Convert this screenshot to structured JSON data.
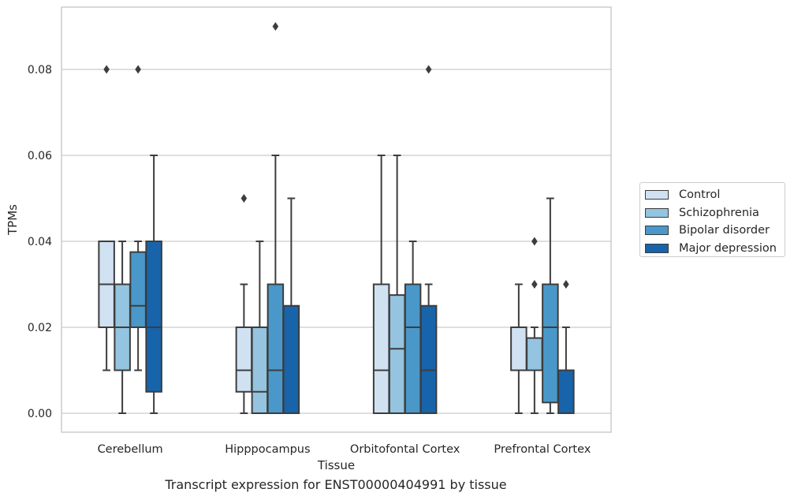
{
  "chart_data": {
    "type": "box",
    "title": "",
    "xlabel": "Tissue",
    "ylabel": "TPMs",
    "ylim": [
      -0.0045,
      0.0945
    ],
    "yticks": [
      "0.00",
      "0.02",
      "0.04",
      "0.06",
      "0.08"
    ],
    "grid": "horizontal",
    "legend_position": "right",
    "categories": [
      "Cerebellum",
      "Hipppocampus",
      "Orbitofontal Cortex",
      "Prefrontal Cortex"
    ],
    "series": [
      {
        "name": "Control",
        "color": "#d0e1f2",
        "boxes": [
          {
            "q1": 0.02,
            "median": 0.03,
            "q3": 0.04,
            "whisker_low": 0.01,
            "whisker_high": 0.04,
            "outliers": [
              0.08
            ]
          },
          {
            "q1": 0.005,
            "median": 0.01,
            "q3": 0.02,
            "whisker_low": 0.0,
            "whisker_high": 0.03,
            "outliers": [
              0.05
            ]
          },
          {
            "q1": 0.0,
            "median": 0.01,
            "q3": 0.03,
            "whisker_low": 0.0,
            "whisker_high": 0.06,
            "outliers": []
          },
          {
            "q1": 0.01,
            "median": 0.01,
            "q3": 0.02,
            "whisker_low": 0.0,
            "whisker_high": 0.03,
            "outliers": []
          }
        ]
      },
      {
        "name": "Schizophrenia",
        "color": "#94c4df",
        "boxes": [
          {
            "q1": 0.01,
            "median": 0.02,
            "q3": 0.03,
            "whisker_low": 0.0,
            "whisker_high": 0.04,
            "outliers": []
          },
          {
            "q1": 0.0,
            "median": 0.005,
            "q3": 0.02,
            "whisker_low": 0.0,
            "whisker_high": 0.04,
            "outliers": []
          },
          {
            "q1": 0.0,
            "median": 0.015,
            "q3": 0.0275,
            "whisker_low": 0.0,
            "whisker_high": 0.06,
            "outliers": []
          },
          {
            "q1": 0.01,
            "median": 0.01,
            "q3": 0.0175,
            "whisker_low": 0.0,
            "whisker_high": 0.02,
            "outliers": [
              0.03,
              0.04
            ]
          }
        ]
      },
      {
        "name": "Bipolar disorder",
        "color": "#4a98c9",
        "boxes": [
          {
            "q1": 0.02,
            "median": 0.025,
            "q3": 0.0375,
            "whisker_low": 0.01,
            "whisker_high": 0.04,
            "outliers": [
              0.08
            ]
          },
          {
            "q1": 0.0,
            "median": 0.01,
            "q3": 0.03,
            "whisker_low": 0.0,
            "whisker_high": 0.06,
            "outliers": [
              0.09
            ]
          },
          {
            "q1": 0.0,
            "median": 0.02,
            "q3": 0.03,
            "whisker_low": 0.0,
            "whisker_high": 0.04,
            "outliers": []
          },
          {
            "q1": 0.0025,
            "median": 0.02,
            "q3": 0.03,
            "whisker_low": 0.0,
            "whisker_high": 0.05,
            "outliers": []
          }
        ]
      },
      {
        "name": "Major depression",
        "color": "#1764ab",
        "boxes": [
          {
            "q1": 0.005,
            "median": 0.02,
            "q3": 0.04,
            "whisker_low": 0.0,
            "whisker_high": 0.06,
            "outliers": []
          },
          {
            "q1": 0.0,
            "median": 0.0,
            "q3": 0.025,
            "whisker_low": 0.0,
            "whisker_high": 0.05,
            "outliers": []
          },
          {
            "q1": 0.0,
            "median": 0.01,
            "q3": 0.025,
            "whisker_low": 0.0,
            "whisker_high": 0.03,
            "outliers": [
              0.08
            ]
          },
          {
            "q1": 0.0,
            "median": 0.0,
            "q3": 0.01,
            "whisker_low": 0.0,
            "whisker_high": 0.02,
            "outliers": [
              0.03
            ]
          }
        ]
      }
    ]
  },
  "caption": "Transcript expression for ENST00000404991 by tissue",
  "colors": {
    "grid": "#cccccc",
    "box_edge": "#3d3d3d",
    "background": "#ffffff"
  }
}
